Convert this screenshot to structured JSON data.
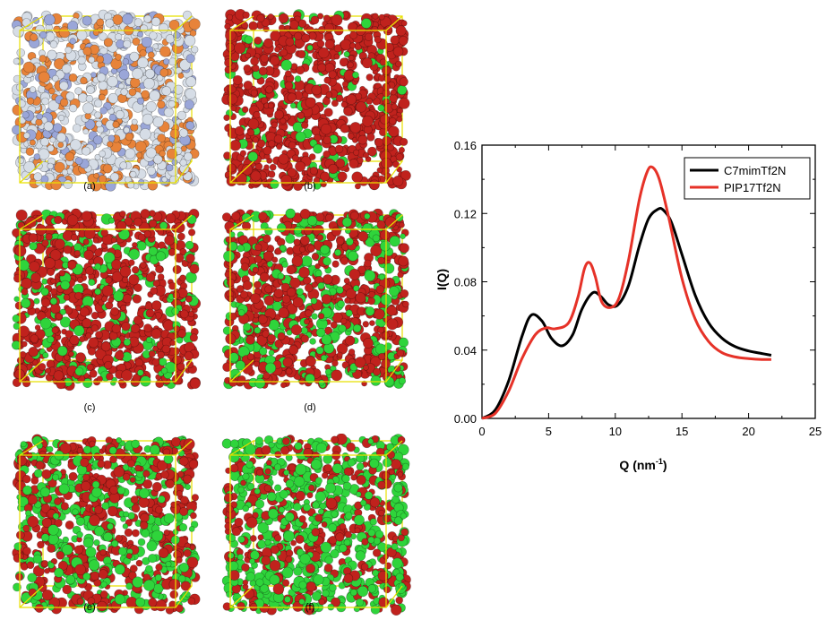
{
  "panels": [
    {
      "label": "(a)",
      "palette": [
        "#d6dde6",
        "#e7833a",
        "#9aa6d8"
      ],
      "weights": [
        0.55,
        0.3,
        0.15
      ]
    },
    {
      "label": "(b)",
      "palette": [
        "#c0221d",
        "#2fd43b"
      ],
      "weights": [
        0.88,
        0.12
      ]
    },
    {
      "label": "(c)",
      "palette": [
        "#c0221d",
        "#2fd43b"
      ],
      "weights": [
        0.76,
        0.24
      ]
    },
    {
      "label": "(d)",
      "palette": [
        "#c0221d",
        "#2fd43b"
      ],
      "weights": [
        0.67,
        0.33
      ]
    },
    {
      "label": "(e)",
      "palette": [
        "#c0221d",
        "#2fd43b"
      ],
      "weights": [
        0.55,
        0.45
      ]
    },
    {
      "label": "(f)",
      "palette": [
        "#c0221d",
        "#2fd43b"
      ],
      "weights": [
        0.42,
        0.58
      ]
    }
  ],
  "chart_data": {
    "type": "line",
    "title": "",
    "xlabel": "Q (nm",
    "xlabel_sup": "-1",
    "xlabel_close": ")",
    "ylabel": "I(Q)",
    "xlim": [
      0,
      25
    ],
    "ylim": [
      0,
      0.16
    ],
    "xticks": [
      0,
      5,
      10,
      15,
      20,
      25
    ],
    "xtick_labels": [
      "0",
      "5",
      "10",
      "15",
      "20",
      "25"
    ],
    "yticks": [
      0,
      0.04,
      0.08,
      0.12,
      0.16
    ],
    "ytick_labels": [
      "0.00",
      "0.04",
      "0.08",
      "0.12",
      "0.16"
    ],
    "grid": false,
    "legend_position": "top-right",
    "series": [
      {
        "name": "C7mimTf2N",
        "color": "#000000",
        "x": [
          0,
          1,
          2,
          3,
          3.7,
          4.5,
          5.2,
          6,
          6.8,
          7.5,
          8.3,
          8.9,
          9.5,
          10.2,
          11,
          11.8,
          12.5,
          13.2,
          13.6,
          14.2,
          15,
          16,
          17,
          18,
          19,
          20,
          21,
          21.7
        ],
        "y": [
          0,
          0.005,
          0.022,
          0.048,
          0.0605,
          0.057,
          0.047,
          0.0425,
          0.049,
          0.064,
          0.0735,
          0.0715,
          0.0665,
          0.0665,
          0.078,
          0.101,
          0.117,
          0.1225,
          0.122,
          0.115,
          0.096,
          0.072,
          0.056,
          0.047,
          0.042,
          0.0395,
          0.038,
          0.037
        ]
      },
      {
        "name": "PIP17Tf2N",
        "color": "#e63228",
        "x": [
          0,
          1,
          2,
          3,
          4,
          4.8,
          5.5,
          6.5,
          7.2,
          7.7,
          8.1,
          8.5,
          9,
          9.7,
          10.3,
          11,
          11.8,
          12.4,
          12.8,
          13.3,
          14,
          15,
          16,
          17,
          18,
          19,
          20,
          21,
          21.7
        ],
        "y": [
          0,
          0.003,
          0.016,
          0.035,
          0.049,
          0.053,
          0.0525,
          0.056,
          0.071,
          0.088,
          0.091,
          0.083,
          0.068,
          0.065,
          0.071,
          0.093,
          0.128,
          0.1445,
          0.147,
          0.14,
          0.118,
          0.082,
          0.058,
          0.045,
          0.0385,
          0.036,
          0.035,
          0.0345,
          0.0345
        ]
      }
    ]
  }
}
